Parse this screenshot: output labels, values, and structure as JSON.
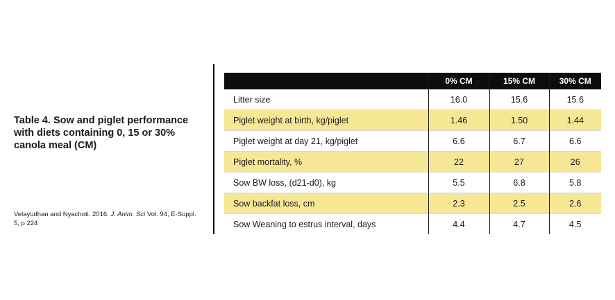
{
  "caption": {
    "title": "Table 4. Sow and piglet performance with diets containing 0, 15 or 30% canola meal (CM)"
  },
  "citation": {
    "authors": "Velayudhan and Nyachoti. 2016.",
    "journal": "J. Anim. Sci",
    "details": "Vol. 94, E-Suppl. 5, p 224"
  },
  "table": {
    "columns": [
      "",
      "0% CM",
      "15% CM",
      "30% CM"
    ],
    "rows": [
      {
        "label": "Litter size",
        "values": [
          "16.0",
          "15.6",
          "15.6"
        ],
        "shaded": false
      },
      {
        "label": "Piglet weight at birth, kg/piglet",
        "values": [
          "1.46",
          "1.50",
          "1.44"
        ],
        "shaded": true
      },
      {
        "label": "Piglet weight at day 21, kg/piglet",
        "values": [
          "6.6",
          "6.7",
          "6.6"
        ],
        "shaded": false
      },
      {
        "label": "Piglet mortality, %",
        "values": [
          "22",
          "27",
          "26"
        ],
        "shaded": true
      },
      {
        "label": "Sow BW loss, (d21-d0), kg",
        "values": [
          "5.5",
          "6.8",
          "5.8"
        ],
        "shaded": false
      },
      {
        "label": "Sow backfat loss, cm",
        "values": [
          "2.3",
          "2.5",
          "2.6"
        ],
        "shaded": true
      },
      {
        "label": "Sow Weaning to estrus interval, days",
        "values": [
          "4.4",
          "4.7",
          "4.5"
        ],
        "shaded": false
      }
    ]
  },
  "colors": {
    "header_bg": "#0d0d0d",
    "row_highlight": "#f6e795"
  }
}
